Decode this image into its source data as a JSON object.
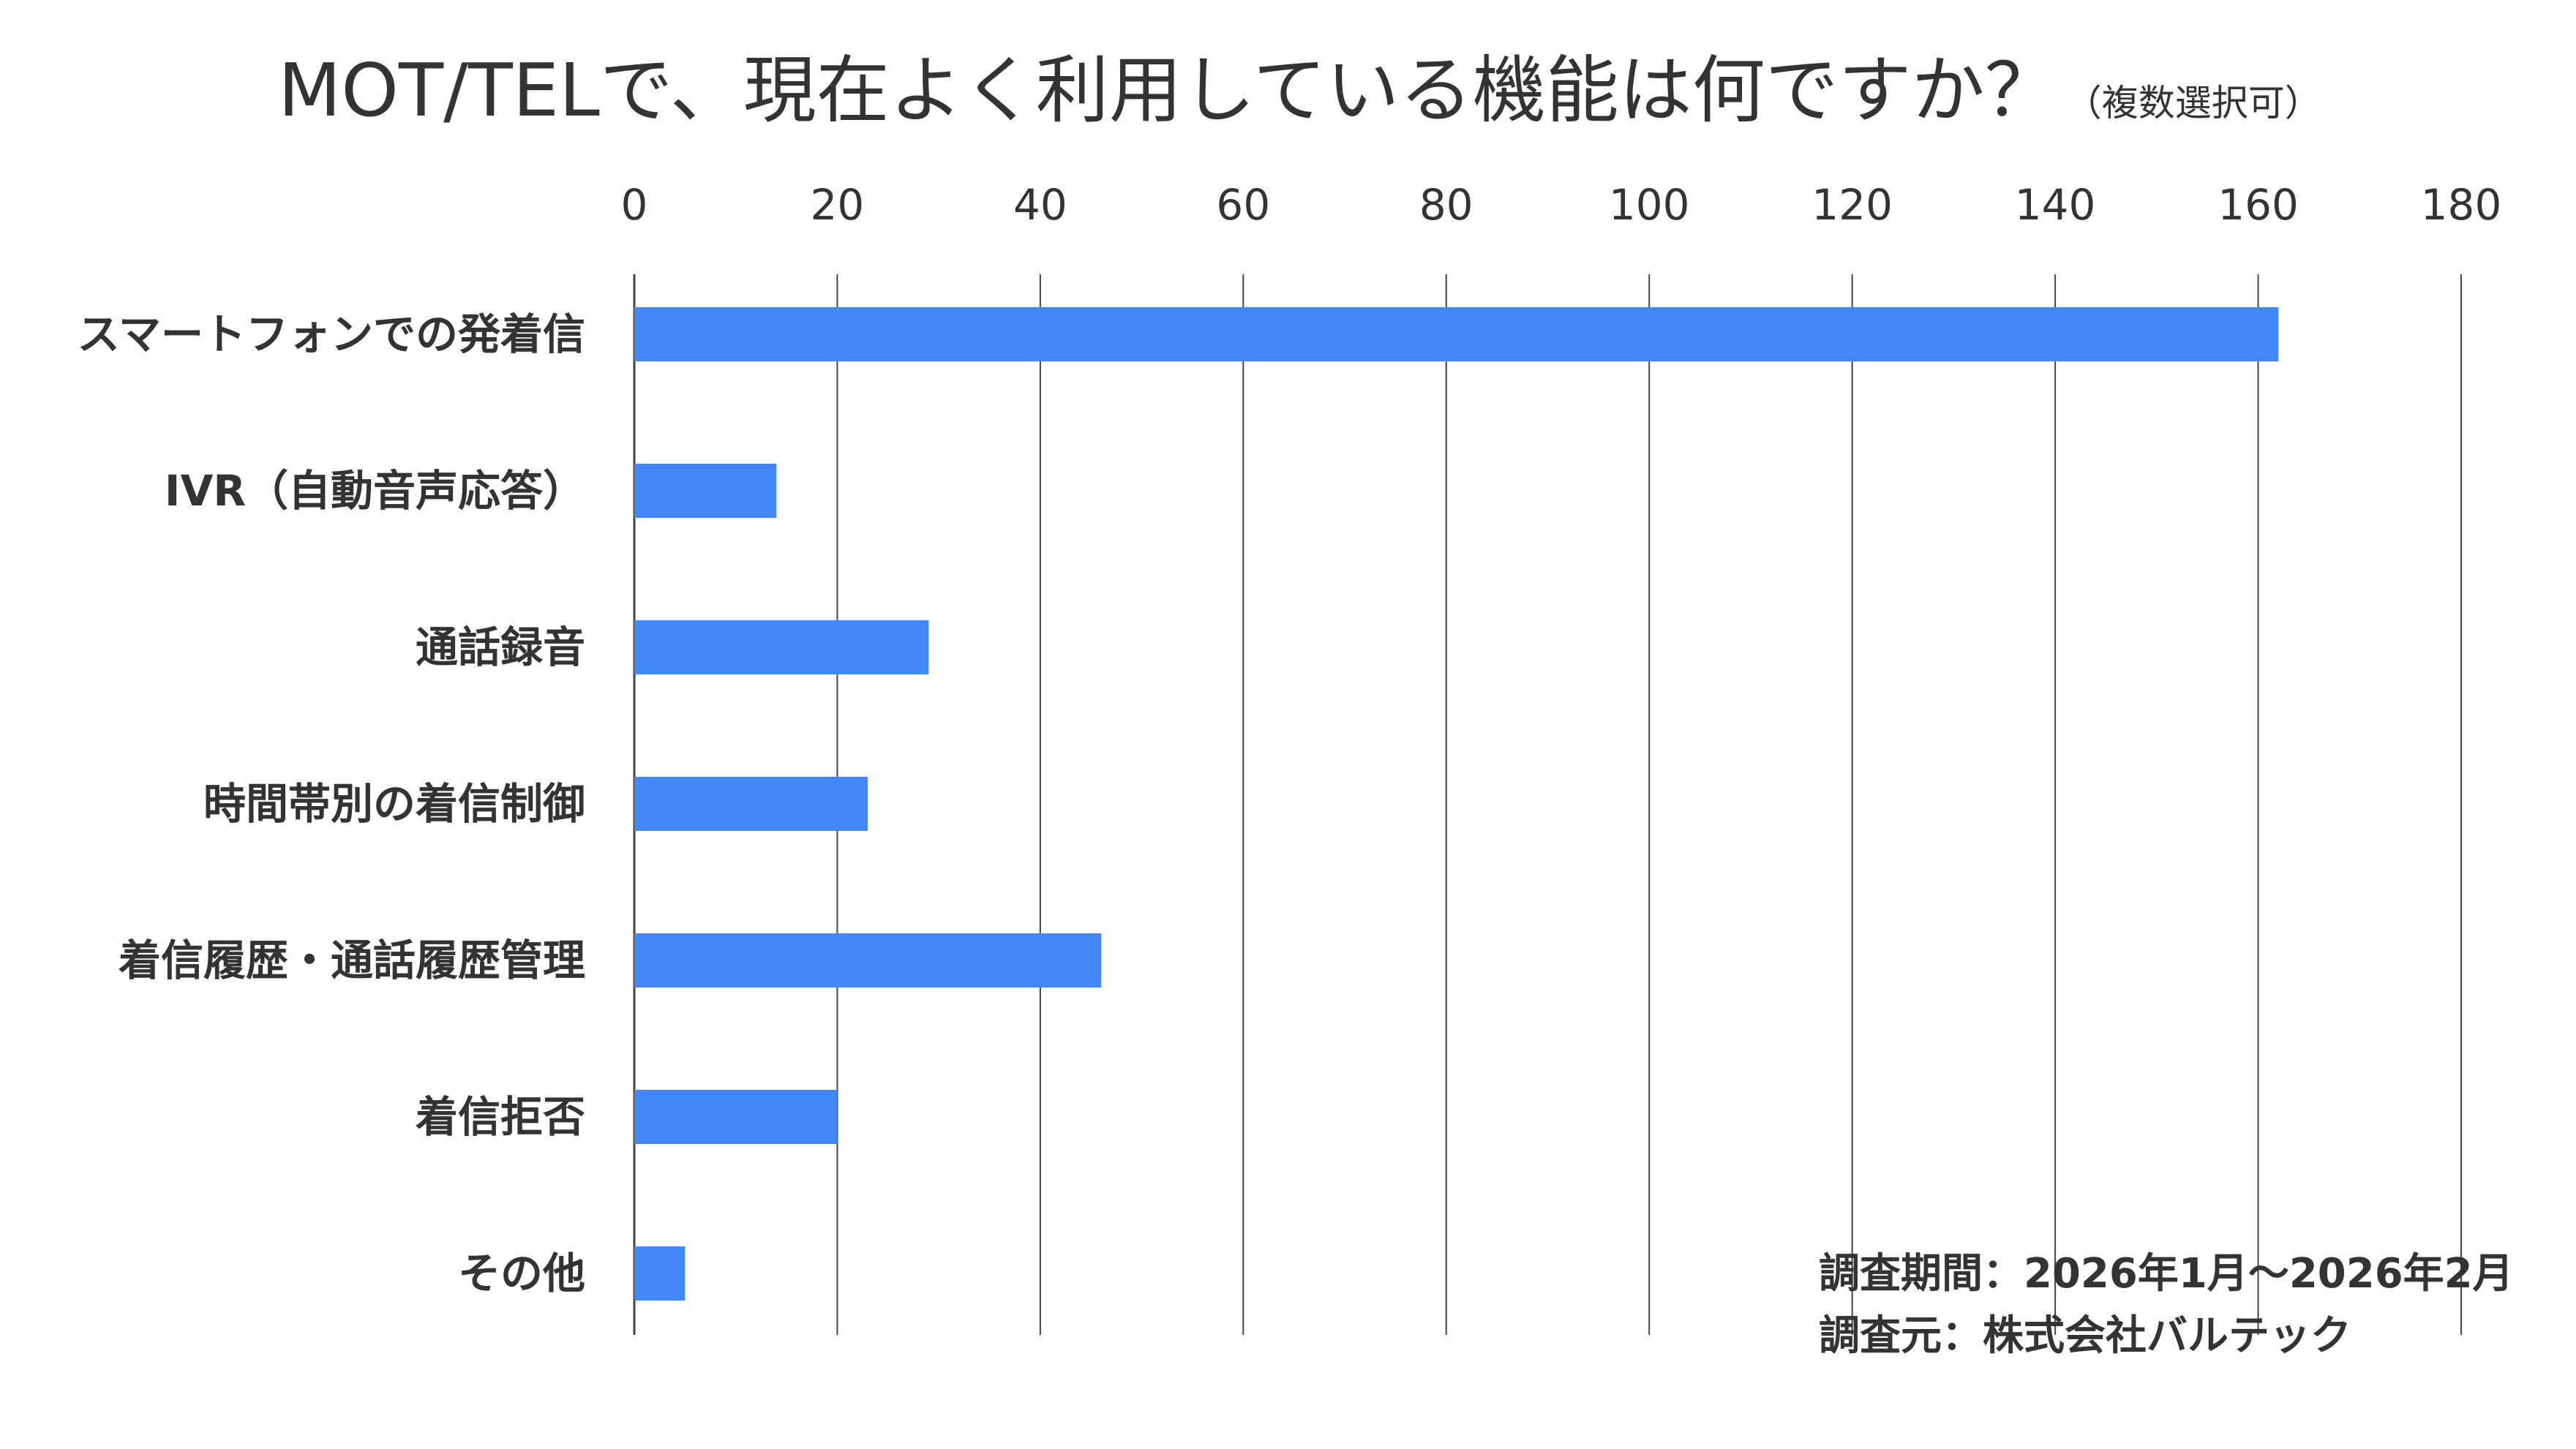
{
  "chart_data": {
    "type": "bar",
    "orientation": "horizontal",
    "title": "MOT/TELで、現在よく利用している機能は何ですか？",
    "subtitle": "（複数選択可）",
    "categories": [
      "スマートフォンでの発着信",
      "IVR（自動音声応答）",
      "通話録音",
      "時間帯別の着信制御",
      "着信履歴・通話履歴管理",
      "着信拒否",
      "その他"
    ],
    "values": [
      162,
      14,
      29,
      23,
      46,
      20,
      5
    ],
    "xlim": [
      0,
      180
    ],
    "ticks": [
      "0",
      "20",
      "40",
      "60",
      "80",
      "100",
      "120",
      "140",
      "160",
      "180"
    ],
    "tick_position": "top",
    "grid": true,
    "bar_color": "#4287f5",
    "xlabel": "",
    "ylabel": ""
  },
  "notes": {
    "period": "調査期間：2026年1月～2026年2月",
    "source": "調査元：株式会社バルテック"
  }
}
